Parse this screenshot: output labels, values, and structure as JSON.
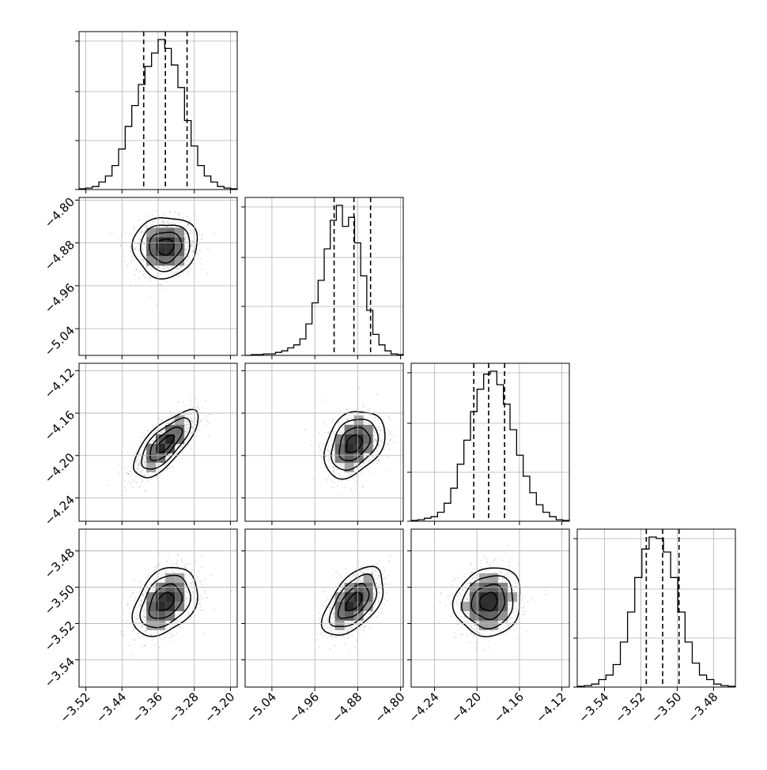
{
  "chart_data": {
    "type": "corner",
    "grid": true,
    "parameters": [
      {
        "ticks": [
          -3.52,
          -3.44,
          -3.36,
          -3.28,
          -3.2
        ],
        "tick_labels": [
          "−3.52",
          "−3.44",
          "−3.36",
          "−3.28",
          "−3.20"
        ],
        "range": [
          -3.535,
          -3.185
        ],
        "quantiles": [
          -3.392,
          -3.344,
          -3.296
        ],
        "histogram": [
          0.005,
          0.01,
          0.02,
          0.05,
          0.09,
          0.16,
          0.27,
          0.42,
          0.56,
          0.7,
          0.82,
          0.91,
          1.0,
          0.94,
          0.83,
          0.68,
          0.46,
          0.29,
          0.16,
          0.09,
          0.05,
          0.02,
          0.01,
          0.005
        ]
      },
      {
        "ticks": [
          -5.04,
          -4.96,
          -4.88,
          -4.8
        ],
        "tick_labels": [
          "−5.04",
          "−4.96",
          "−4.88",
          "−4.80"
        ],
        "range": [
          -5.09,
          -4.795
        ],
        "quantiles": [
          -4.924,
          -4.887,
          -4.856
        ],
        "histogram": [
          0.0,
          0.005,
          0.005,
          0.01,
          0.01,
          0.02,
          0.03,
          0.05,
          0.07,
          0.11,
          0.21,
          0.35,
          0.5,
          0.71,
          0.9,
          1.0,
          0.86,
          0.92,
          0.75,
          0.53,
          0.3,
          0.14,
          0.07,
          0.03,
          0.01,
          0.005
        ]
      },
      {
        "ticks": [
          -4.24,
          -4.16,
          -4.12
        ],
        "tick_labels": [
          "−4.24",
          "−4.16",
          "−4.12"
        ],
        "range": [
          -4.262,
          -4.113
        ],
        "quantiles": [
          -4.203,
          -4.189,
          -4.174
        ],
        "histogram": [
          0.005,
          0.01,
          0.02,
          0.03,
          0.06,
          0.12,
          0.22,
          0.38,
          0.54,
          0.73,
          0.88,
          0.98,
          1.0,
          0.91,
          0.78,
          0.61,
          0.44,
          0.3,
          0.19,
          0.11,
          0.06,
          0.03,
          0.01,
          0.005
        ]
      },
      {
        "ticks": [
          -3.54,
          -3.52,
          -3.5,
          -3.48
        ],
        "tick_labels": [
          "−3.54",
          "−3.52",
          "−3.50",
          "−3.48"
        ],
        "range": [
          -3.555,
          -3.468
        ],
        "quantiles": [
          -3.517,
          -3.508,
          -3.499
        ],
        "histogram": [
          0.005,
          0.01,
          0.02,
          0.05,
          0.08,
          0.15,
          0.3,
          0.5,
          0.73,
          0.92,
          1.0,
          0.99,
          0.9,
          0.73,
          0.5,
          0.3,
          0.16,
          0.08,
          0.05,
          0.02,
          0.01,
          0.005
        ]
      }
    ],
    "panel_ticks": {
      "row1_y": {
        "ticks": [
          -4.8,
          -4.88,
          -4.96,
          -5.04
        ],
        "tick_labels": [
          "−4.80",
          "−4.88",
          "−4.96",
          "−5.04"
        ]
      },
      "row2_y": {
        "ticks": [
          -4.12,
          -4.16,
          -4.2,
          -4.24
        ],
        "tick_labels": [
          "−4.12",
          "−4.16",
          "−4.20",
          "−4.24"
        ]
      },
      "row3_y": {
        "ticks": [
          -3.48,
          -3.5,
          -3.52,
          -3.54
        ],
        "tick_labels": [
          "−3.48",
          "−3.50",
          "−3.52",
          "−3.54"
        ]
      },
      "col0_x": {
        "ticks": [
          -3.52,
          -3.44,
          -3.36,
          -3.28,
          -3.2
        ],
        "tick_labels": [
          "−3.52",
          "−3.44",
          "−3.36",
          "−3.28",
          "−3.20"
        ]
      },
      "col1_x": {
        "ticks": [
          -5.04,
          -4.96,
          -4.88,
          -4.8
        ],
        "tick_labels": [
          "−5.04",
          "−4.96",
          "−4.88",
          "−4.80"
        ]
      },
      "col2_x": {
        "ticks": [
          -4.24,
          -4.2,
          -4.16,
          -4.12
        ],
        "tick_labels": [
          "−4.24",
          "−4.20",
          "−4.16",
          "−4.12"
        ]
      },
      "col3_x": {
        "ticks": [
          -3.54,
          -3.52,
          -3.5,
          -3.48
        ],
        "tick_labels": [
          "−3.54",
          "−3.52",
          "−3.50",
          "−3.48"
        ]
      }
    },
    "pairs": [
      {
        "row": 1,
        "col": 0,
        "mean": [
          -3.344,
          -4.887
        ],
        "sd": [
          0.034,
          0.027
        ],
        "corr": 0.05
      },
      {
        "row": 2,
        "col": 0,
        "mean": [
          -3.344,
          -4.189
        ],
        "sd": [
          0.034,
          0.015
        ],
        "corr": 0.72
      },
      {
        "row": 2,
        "col": 1,
        "mean": [
          -4.887,
          -4.189
        ],
        "sd": [
          0.027,
          0.015
        ],
        "corr": 0.32
      },
      {
        "row": 3,
        "col": 0,
        "mean": [
          -3.344,
          -3.508
        ],
        "sd": [
          0.034,
          0.009
        ],
        "corr": 0.35
      },
      {
        "row": 3,
        "col": 1,
        "mean": [
          -4.887,
          -3.508
        ],
        "sd": [
          0.027,
          0.009
        ],
        "corr": 0.55
      },
      {
        "row": 3,
        "col": 2,
        "mean": [
          -4.189,
          -3.508
        ],
        "sd": [
          0.015,
          0.009
        ],
        "corr": 0.1
      }
    ]
  }
}
